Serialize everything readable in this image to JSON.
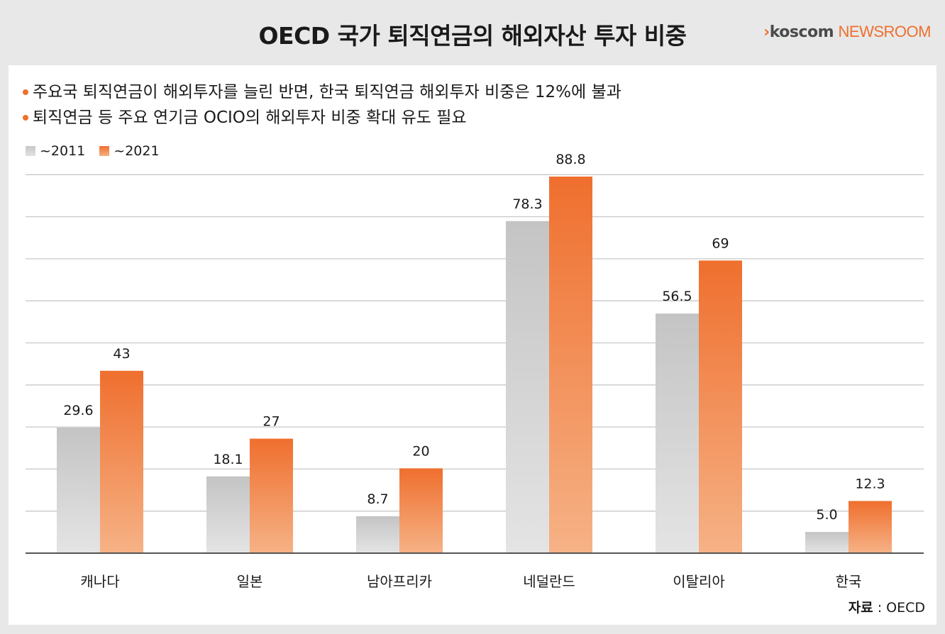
{
  "title": "OECD 국가 퇴직연금의 해외자산 투자 비중",
  "brand": {
    "arrow": "›",
    "name": "koscom",
    "suffix": "NEWSROOM"
  },
  "bullets": [
    "주요국 퇴직연금이 해외투자를 늘린 반면, 한국 퇴직연금 해외투자 비중은 12%에 불과",
    "퇴직연금 등 주요 연기금 OCIO의 해외투자 비중 확대 유도 필요"
  ],
  "source": {
    "label": "자료",
    "sep": " : ",
    "value": "OECD"
  },
  "colors": {
    "accent": "#ef6f2e",
    "gray_top": "#c4c4c4",
    "gray_bottom": "#e4e4e4",
    "orange_top": "#ef6f2e",
    "orange_bottom": "#f6b286"
  },
  "chart_data": {
    "type": "bar",
    "title": "OECD 국가 퇴직연금의 해외자산 투자 비중",
    "xlabel": "",
    "ylabel": "",
    "categories": [
      "캐나다",
      "일본",
      "남아프리카",
      "네덜란드",
      "이탈리아",
      "한국"
    ],
    "series": [
      {
        "name": "~2011",
        "values": [
          29.6,
          18.1,
          8.7,
          78.3,
          56.5,
          5.0
        ],
        "labels": [
          "29.6",
          "18.1",
          "8.7",
          "78.3",
          "56.5",
          "5.0"
        ]
      },
      {
        "name": "~2021",
        "values": [
          43,
          27,
          20,
          88.8,
          69,
          12.3
        ],
        "labels": [
          "43",
          "27",
          "20",
          "88.8",
          "69",
          "12.3"
        ]
      }
    ],
    "ylim": [
      0,
      90
    ],
    "grid": true,
    "legend": "top-left"
  }
}
